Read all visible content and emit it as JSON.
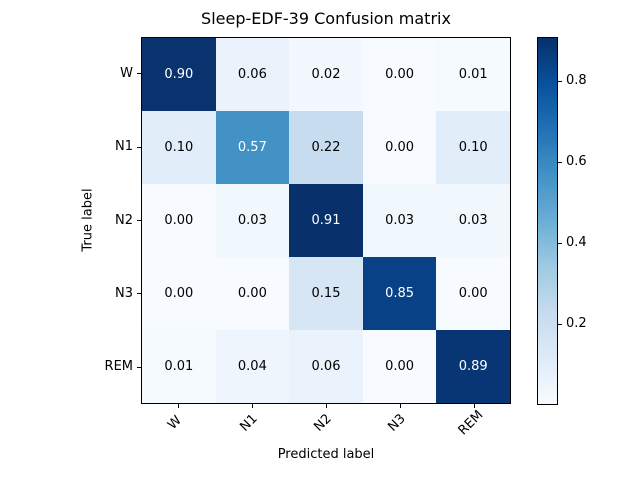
{
  "chart_data": {
    "type": "heatmap",
    "title": "Sleep-EDF-39 Confusion matrix",
    "xlabel": "Predicted label",
    "ylabel": "True label",
    "x_tick_labels": [
      "W",
      "N1",
      "N2",
      "N3",
      "REM"
    ],
    "y_tick_labels": [
      "W",
      "N1",
      "N2",
      "N3",
      "REM"
    ],
    "cell_text": [
      [
        "0.90",
        "0.06",
        "0.02",
        "0.00",
        "0.01"
      ],
      [
        "0.10",
        "0.57",
        "0.22",
        "0.00",
        "0.10"
      ],
      [
        "0.00",
        "0.03",
        "0.91",
        "0.03",
        "0.03"
      ],
      [
        "0.00",
        "0.00",
        "0.15",
        "0.85",
        "0.00"
      ],
      [
        "0.01",
        "0.04",
        "0.06",
        "0.00",
        "0.89"
      ]
    ],
    "values": [
      [
        0.9,
        0.06,
        0.02,
        0.0,
        0.01
      ],
      [
        0.1,
        0.57,
        0.22,
        0.0,
        0.1
      ],
      [
        0.0,
        0.03,
        0.91,
        0.03,
        0.03
      ],
      [
        0.0,
        0.0,
        0.15,
        0.85,
        0.0
      ],
      [
        0.01,
        0.04,
        0.06,
        0.0,
        0.89
      ]
    ],
    "colormap": "Blues",
    "vmin": 0.0,
    "vmax": 0.91,
    "colorbar_ticks": [
      0.2,
      0.4,
      0.6,
      0.8
    ],
    "colorbar_tick_labels": [
      "0.2",
      "0.4",
      "0.6",
      "0.8"
    ],
    "legend_position": "colorbar-right",
    "grid": false,
    "colors": {
      "cmap_low": "#f7fbff",
      "cmap_high": "#08306b",
      "cell_text_dark": "#000000",
      "cell_text_light": "#ffffff",
      "spine": "#000000",
      "background": "#ffffff"
    }
  }
}
